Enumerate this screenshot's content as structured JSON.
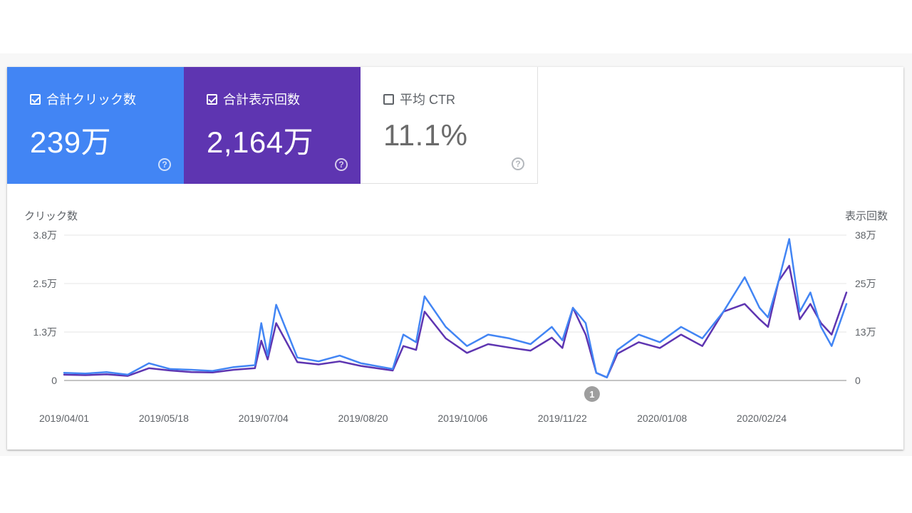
{
  "tiles": [
    {
      "name": "tile-total-clicks",
      "label": "合計クリック数",
      "value": "239万",
      "checked": true,
      "color": "#4285f4"
    },
    {
      "name": "tile-total-impressions",
      "label": "合計表示回数",
      "value": "2,164万",
      "checked": true,
      "color": "#5e35b1"
    },
    {
      "name": "tile-average-ctr",
      "label": "平均 CTR",
      "value": "11.1%",
      "checked": false,
      "color": "#ffffff"
    }
  ],
  "help_glyph": "?",
  "chart_data": {
    "type": "line",
    "left_axis_title": "クリック数",
    "right_axis_title": "表示回数",
    "left_ticks": [
      "0",
      "1.3万",
      "2.5万",
      "3.8万"
    ],
    "right_ticks": [
      "0",
      "13万",
      "25万",
      "38万"
    ],
    "left_ylim": [
      0,
      38000
    ],
    "right_ylim": [
      0,
      380000
    ],
    "x_tick_labels": [
      "2019/04/01",
      "2019/05/18",
      "2019/07/04",
      "2019/08/20",
      "2019/10/06",
      "2019/11/22",
      "2020/01/08",
      "2020/02/24"
    ],
    "annotation_label": "1",
    "annotation_date": "2019/12/06",
    "grid": true,
    "series": [
      {
        "axis": "left",
        "color": "#4285f4",
        "x": [
          "2019/04/01",
          "2019/04/11",
          "2019/04/21",
          "2019/05/01",
          "2019/05/11",
          "2019/05/21",
          "2019/05/31",
          "2019/06/10",
          "2019/06/20",
          "2019/06/30",
          "2019/07/03",
          "2019/07/06",
          "2019/07/10",
          "2019/07/20",
          "2019/07/30",
          "2019/08/09",
          "2019/08/19",
          "2019/08/29",
          "2019/09/03",
          "2019/09/08",
          "2019/09/14",
          "2019/09/18",
          "2019/09/28",
          "2019/10/08",
          "2019/10/18",
          "2019/10/28",
          "2019/11/07",
          "2019/11/17",
          "2019/11/22",
          "2019/11/27",
          "2019/12/03",
          "2019/12/08",
          "2019/12/13",
          "2019/12/18",
          "2019/12/28",
          "2020/01/07",
          "2020/01/17",
          "2020/01/27",
          "2020/02/06",
          "2020/02/16",
          "2020/02/23",
          "2020/02/27",
          "2020/03/03",
          "2020/03/08",
          "2020/03/13",
          "2020/03/18",
          "2020/03/23",
          "2020/03/28",
          "2020/04/04"
        ],
        "y": [
          2000,
          1800,
          2200,
          1500,
          4500,
          3000,
          2800,
          2500,
          3500,
          4000,
          15000,
          6500,
          19800,
          6000,
          5000,
          6500,
          4500,
          3500,
          3000,
          12000,
          10000,
          22000,
          14000,
          9000,
          12000,
          11000,
          9500,
          14000,
          10500,
          19000,
          15000,
          2000,
          800,
          8000,
          12000,
          10000,
          14000,
          11000,
          18000,
          27000,
          19000,
          16500,
          26000,
          37000,
          18000,
          23000,
          14000,
          9000,
          20000
        ]
      },
      {
        "axis": "right",
        "color": "#5e35b1",
        "x": [
          "2019/04/01",
          "2019/04/11",
          "2019/04/21",
          "2019/05/01",
          "2019/05/11",
          "2019/05/21",
          "2019/05/31",
          "2019/06/10",
          "2019/06/20",
          "2019/06/30",
          "2019/07/03",
          "2019/07/06",
          "2019/07/10",
          "2019/07/20",
          "2019/07/30",
          "2019/08/09",
          "2019/08/19",
          "2019/08/29",
          "2019/09/03",
          "2019/09/08",
          "2019/09/14",
          "2019/09/18",
          "2019/09/28",
          "2019/10/08",
          "2019/10/18",
          "2019/10/28",
          "2019/11/07",
          "2019/11/17",
          "2019/11/22",
          "2019/11/27",
          "2019/12/03",
          "2019/12/08",
          "2019/12/13",
          "2019/12/18",
          "2019/12/28",
          "2020/01/07",
          "2020/01/17",
          "2020/01/27",
          "2020/02/06",
          "2020/02/16",
          "2020/02/23",
          "2020/02/27",
          "2020/03/03",
          "2020/03/08",
          "2020/03/13",
          "2020/03/18",
          "2020/03/23",
          "2020/03/28",
          "2020/04/04"
        ],
        "y": [
          15000,
          14000,
          16000,
          12000,
          32000,
          26000,
          22000,
          21000,
          28000,
          32000,
          104000,
          55000,
          150000,
          48000,
          42000,
          50000,
          38000,
          30000,
          26000,
          90000,
          80000,
          180000,
          110000,
          72000,
          95000,
          86000,
          78000,
          112000,
          85000,
          190000,
          120000,
          20000,
          8000,
          70000,
          100000,
          85000,
          120000,
          90000,
          180000,
          200000,
          160000,
          140000,
          260000,
          300000,
          160000,
          200000,
          150000,
          120000,
          230000
        ]
      }
    ]
  }
}
